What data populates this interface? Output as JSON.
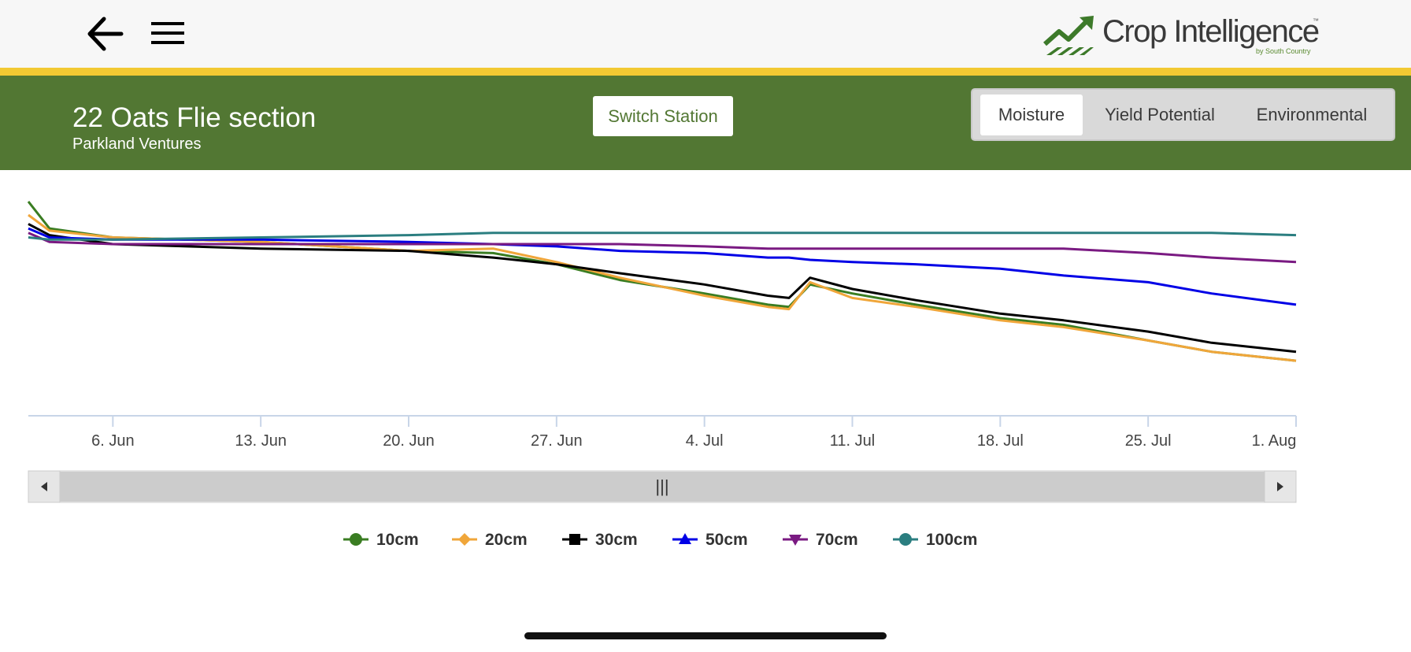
{
  "header": {
    "brand": {
      "name": "Crop Intelligence",
      "trademark": "™",
      "tagline": "by South Country"
    },
    "back_icon": "arrow-left-icon",
    "menu_icon": "hamburger-menu-icon"
  },
  "station": {
    "title": "22 Oats Flie section",
    "subtitle": "Parkland Ventures",
    "switch_label": "Switch Station"
  },
  "tabs": [
    {
      "label": "Moisture",
      "active": true
    },
    {
      "label": "Yield Potential",
      "active": false
    },
    {
      "label": "Environmental",
      "active": false
    }
  ],
  "colors": {
    "header_bg": "#f7f7f7",
    "accent_yellow": "#f2c933",
    "station_bar": "#527733",
    "brand_green": "#3d7a2a"
  },
  "chart_data": {
    "type": "line",
    "x_unit": "date",
    "x_ticks": [
      "6. Jun",
      "13. Jun",
      "20. Jun",
      "27. Jun",
      "4. Jul",
      "11. Jul",
      "18. Jul",
      "25. Jul",
      "1. Aug"
    ],
    "x_range": [
      "2022-06-02",
      "2022-08-01"
    ],
    "y_axis_labels": "none",
    "x": [
      "2022-06-02",
      "2022-06-03",
      "2022-06-06",
      "2022-06-13",
      "2022-06-20",
      "2022-06-24",
      "2022-06-27",
      "2022-06-30",
      "2022-07-04",
      "2022-07-07",
      "2022-07-08",
      "2022-07-09",
      "2022-07-11",
      "2022-07-14",
      "2022-07-18",
      "2022-07-21",
      "2022-07-25",
      "2022-07-28",
      "2022-08-01"
    ],
    "series": [
      {
        "name": "10cm",
        "color": "#3a7d22",
        "marker": "circle",
        "values": [
          63,
          51,
          47,
          45,
          41,
          40,
          35,
          28,
          22,
          17,
          16,
          26,
          22,
          17,
          11,
          8,
          1,
          -4,
          -8
        ]
      },
      {
        "name": "20cm",
        "color": "#f0a63a",
        "marker": "diamond",
        "values": [
          57,
          50,
          47,
          45,
          41,
          42,
          36,
          29,
          21,
          16,
          15,
          27,
          20,
          16,
          10,
          7,
          1,
          -4,
          -8
        ]
      },
      {
        "name": "30cm",
        "color": "#000000",
        "marker": "square",
        "values": [
          53,
          48,
          44,
          42,
          41,
          38,
          35,
          31,
          26,
          21,
          20,
          29,
          24,
          19,
          13,
          10,
          5,
          0,
          -4
        ]
      },
      {
        "name": "50cm",
        "color": "#0000e6",
        "marker": "triangle-up",
        "values": [
          51,
          47,
          46,
          46,
          45,
          44,
          43,
          41,
          40,
          38,
          38,
          37,
          36,
          35,
          33,
          30,
          27,
          22,
          17
        ]
      },
      {
        "name": "70cm",
        "color": "#7a1a82",
        "marker": "triangle-down",
        "values": [
          49,
          45,
          44,
          44,
          44,
          44,
          44,
          44,
          43,
          42,
          42,
          42,
          42,
          42,
          42,
          42,
          40,
          38,
          36
        ]
      },
      {
        "name": "100cm",
        "color": "#2b7e80",
        "marker": "circle",
        "values": [
          47,
          46,
          46,
          47,
          48,
          49,
          49,
          49,
          49,
          49,
          49,
          49,
          49,
          49,
          49,
          49,
          49,
          49,
          48
        ]
      }
    ],
    "grid": false,
    "legend_position": "bottom-center",
    "navigator": {
      "type": "scrollbar",
      "grip_label": "|||"
    }
  }
}
